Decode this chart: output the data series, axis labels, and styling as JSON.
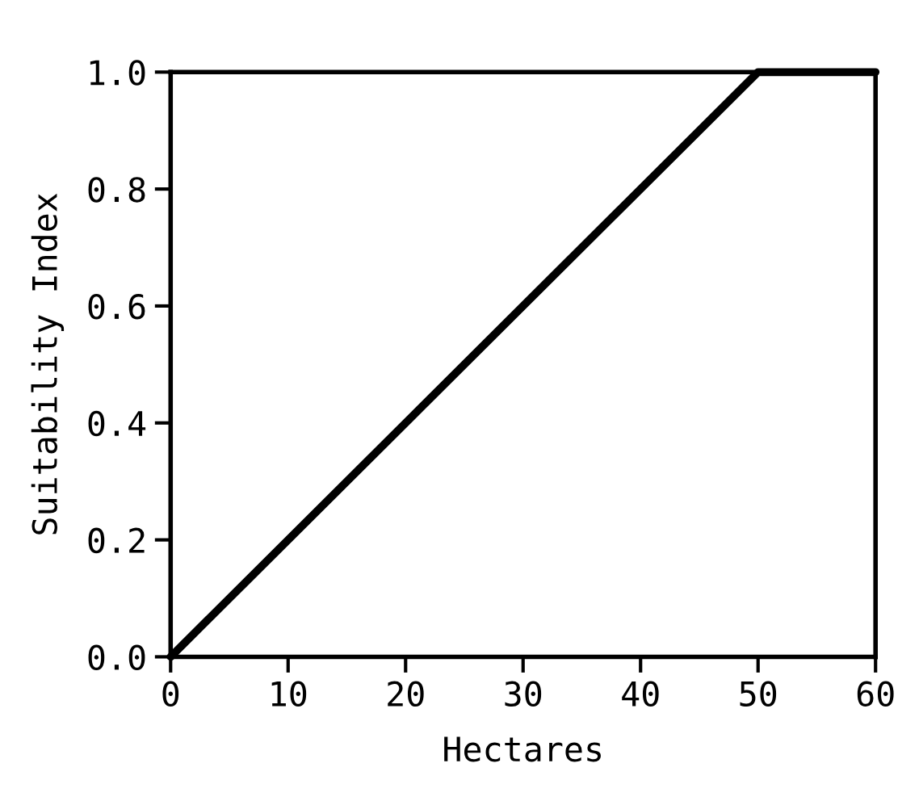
{
  "chart_data": {
    "type": "line",
    "xlabel": "Hectares",
    "ylabel": "Suitability Index",
    "x": [
      0,
      50,
      60
    ],
    "series": [
      {
        "color": "#000000",
        "values": [
          0,
          1,
          1
        ]
      }
    ],
    "xlim": [
      0,
      60
    ],
    "xticks": [
      0,
      10,
      20,
      30,
      40,
      50,
      60
    ],
    "ylim": [
      0,
      1
    ],
    "yticks": [
      {
        "value": 0,
        "label": "0.0"
      },
      {
        "value": 0.2,
        "label": "0.2"
      },
      {
        "value": 0.4,
        "label": "0.4"
      },
      {
        "value": 0.6,
        "label": "0.6"
      },
      {
        "value": 0.8,
        "label": "0.8"
      },
      {
        "value": 1,
        "label": "1.0"
      }
    ],
    "grid": false,
    "legend": false,
    "line_style": "solid"
  }
}
